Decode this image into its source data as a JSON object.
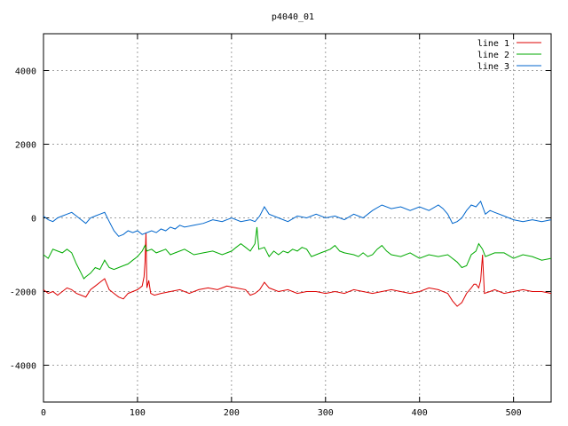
{
  "chart_data": {
    "type": "line",
    "title": "p4040_01",
    "xlabel": "",
    "ylabel": "",
    "xlim": [
      0,
      540
    ],
    "ylim": [
      -5000,
      5000
    ],
    "x_ticks": [
      0,
      100,
      200,
      300,
      400,
      500
    ],
    "y_ticks": [
      -4000,
      -2000,
      0,
      2000,
      4000
    ],
    "grid": true,
    "legend_position": "top-right",
    "series": [
      {
        "name": "line 1",
        "color": "#dd0000",
        "points": [
          [
            0,
            -1950
          ],
          [
            5,
            -2050
          ],
          [
            10,
            -2000
          ],
          [
            15,
            -2100
          ],
          [
            20,
            -2000
          ],
          [
            25,
            -1900
          ],
          [
            30,
            -1950
          ],
          [
            35,
            -2050
          ],
          [
            40,
            -2100
          ],
          [
            45,
            -2150
          ],
          [
            50,
            -1950
          ],
          [
            55,
            -1850
          ],
          [
            60,
            -1750
          ],
          [
            65,
            -1650
          ],
          [
            70,
            -1950
          ],
          [
            75,
            -2050
          ],
          [
            80,
            -2150
          ],
          [
            85,
            -2200
          ],
          [
            90,
            -2050
          ],
          [
            95,
            -2000
          ],
          [
            100,
            -1950
          ],
          [
            105,
            -1850
          ],
          [
            107,
            -1600
          ],
          [
            108,
            -1200
          ],
          [
            109,
            -400
          ],
          [
            110,
            -1900
          ],
          [
            112,
            -1700
          ],
          [
            114,
            -2050
          ],
          [
            118,
            -2100
          ],
          [
            125,
            -2050
          ],
          [
            135,
            -2000
          ],
          [
            145,
            -1950
          ],
          [
            155,
            -2050
          ],
          [
            165,
            -1950
          ],
          [
            175,
            -1900
          ],
          [
            185,
            -1950
          ],
          [
            195,
            -1850
          ],
          [
            205,
            -1900
          ],
          [
            215,
            -1950
          ],
          [
            220,
            -2100
          ],
          [
            225,
            -2050
          ],
          [
            230,
            -1950
          ],
          [
            235,
            -1750
          ],
          [
            240,
            -1900
          ],
          [
            250,
            -2000
          ],
          [
            260,
            -1950
          ],
          [
            270,
            -2050
          ],
          [
            280,
            -2000
          ],
          [
            290,
            -2000
          ],
          [
            300,
            -2050
          ],
          [
            310,
            -2000
          ],
          [
            320,
            -2050
          ],
          [
            330,
            -1950
          ],
          [
            340,
            -2000
          ],
          [
            350,
            -2050
          ],
          [
            360,
            -2000
          ],
          [
            370,
            -1950
          ],
          [
            380,
            -2000
          ],
          [
            390,
            -2050
          ],
          [
            400,
            -2000
          ],
          [
            410,
            -1900
          ],
          [
            420,
            -1950
          ],
          [
            430,
            -2050
          ],
          [
            435,
            -2250
          ],
          [
            440,
            -2400
          ],
          [
            445,
            -2300
          ],
          [
            450,
            -2050
          ],
          [
            455,
            -1900
          ],
          [
            458,
            -1800
          ],
          [
            460,
            -1800
          ],
          [
            463,
            -1900
          ],
          [
            465,
            -1700
          ],
          [
            467,
            -1000
          ],
          [
            469,
            -2050
          ],
          [
            475,
            -2000
          ],
          [
            480,
            -1950
          ],
          [
            490,
            -2050
          ],
          [
            500,
            -2000
          ],
          [
            510,
            -1950
          ],
          [
            520,
            -2000
          ],
          [
            530,
            -2000
          ],
          [
            540,
            -2050
          ]
        ]
      },
      {
        "name": "line 2",
        "color": "#00aa00",
        "points": [
          [
            0,
            -1000
          ],
          [
            5,
            -1100
          ],
          [
            10,
            -850
          ],
          [
            15,
            -900
          ],
          [
            20,
            -950
          ],
          [
            25,
            -850
          ],
          [
            30,
            -950
          ],
          [
            35,
            -1250
          ],
          [
            40,
            -1500
          ],
          [
            43,
            -1650
          ],
          [
            45,
            -1600
          ],
          [
            50,
            -1500
          ],
          [
            55,
            -1350
          ],
          [
            60,
            -1400
          ],
          [
            65,
            -1150
          ],
          [
            70,
            -1350
          ],
          [
            75,
            -1400
          ],
          [
            80,
            -1350
          ],
          [
            85,
            -1300
          ],
          [
            90,
            -1250
          ],
          [
            95,
            -1150
          ],
          [
            100,
            -1050
          ],
          [
            105,
            -900
          ],
          [
            108,
            -750
          ],
          [
            110,
            -900
          ],
          [
            115,
            -850
          ],
          [
            120,
            -950
          ],
          [
            125,
            -900
          ],
          [
            130,
            -850
          ],
          [
            135,
            -1000
          ],
          [
            140,
            -950
          ],
          [
            145,
            -900
          ],
          [
            150,
            -850
          ],
          [
            160,
            -1000
          ],
          [
            170,
            -950
          ],
          [
            180,
            -900
          ],
          [
            190,
            -1000
          ],
          [
            200,
            -900
          ],
          [
            205,
            -800
          ],
          [
            210,
            -700
          ],
          [
            215,
            -800
          ],
          [
            220,
            -900
          ],
          [
            225,
            -700
          ],
          [
            227,
            -250
          ],
          [
            229,
            -850
          ],
          [
            235,
            -800
          ],
          [
            240,
            -1050
          ],
          [
            245,
            -900
          ],
          [
            250,
            -1000
          ],
          [
            255,
            -900
          ],
          [
            260,
            -950
          ],
          [
            265,
            -850
          ],
          [
            270,
            -900
          ],
          [
            275,
            -800
          ],
          [
            280,
            -850
          ],
          [
            285,
            -1050
          ],
          [
            290,
            -1000
          ],
          [
            295,
            -950
          ],
          [
            300,
            -900
          ],
          [
            305,
            -850
          ],
          [
            310,
            -750
          ],
          [
            315,
            -900
          ],
          [
            320,
            -950
          ],
          [
            330,
            -1000
          ],
          [
            335,
            -1050
          ],
          [
            340,
            -950
          ],
          [
            345,
            -1050
          ],
          [
            350,
            -1000
          ],
          [
            355,
            -850
          ],
          [
            360,
            -750
          ],
          [
            365,
            -900
          ],
          [
            370,
            -1000
          ],
          [
            380,
            -1050
          ],
          [
            390,
            -950
          ],
          [
            400,
            -1100
          ],
          [
            410,
            -1000
          ],
          [
            420,
            -1050
          ],
          [
            430,
            -1000
          ],
          [
            440,
            -1200
          ],
          [
            445,
            -1350
          ],
          [
            450,
            -1300
          ],
          [
            455,
            -1000
          ],
          [
            460,
            -900
          ],
          [
            463,
            -700
          ],
          [
            467,
            -850
          ],
          [
            470,
            -1050
          ],
          [
            475,
            -1000
          ],
          [
            480,
            -950
          ],
          [
            490,
            -950
          ],
          [
            500,
            -1100
          ],
          [
            510,
            -1000
          ],
          [
            520,
            -1050
          ],
          [
            530,
            -1150
          ],
          [
            540,
            -1100
          ]
        ]
      },
      {
        "name": "line 3",
        "color": "#0066cc",
        "points": [
          [
            0,
            50
          ],
          [
            5,
            -50
          ],
          [
            10,
            -100
          ],
          [
            15,
            0
          ],
          [
            20,
            50
          ],
          [
            25,
            100
          ],
          [
            30,
            150
          ],
          [
            35,
            50
          ],
          [
            40,
            -50
          ],
          [
            45,
            -150
          ],
          [
            50,
            0
          ],
          [
            55,
            50
          ],
          [
            60,
            100
          ],
          [
            65,
            150
          ],
          [
            70,
            -100
          ],
          [
            75,
            -350
          ],
          [
            80,
            -500
          ],
          [
            85,
            -450
          ],
          [
            90,
            -350
          ],
          [
            95,
            -400
          ],
          [
            100,
            -350
          ],
          [
            105,
            -450
          ],
          [
            110,
            -400
          ],
          [
            115,
            -350
          ],
          [
            120,
            -400
          ],
          [
            125,
            -300
          ],
          [
            130,
            -350
          ],
          [
            135,
            -250
          ],
          [
            140,
            -300
          ],
          [
            145,
            -200
          ],
          [
            150,
            -250
          ],
          [
            160,
            -200
          ],
          [
            170,
            -150
          ],
          [
            180,
            -50
          ],
          [
            190,
            -100
          ],
          [
            200,
            0
          ],
          [
            210,
            -100
          ],
          [
            220,
            -50
          ],
          [
            225,
            -100
          ],
          [
            230,
            50
          ],
          [
            235,
            300
          ],
          [
            240,
            100
          ],
          [
            250,
            0
          ],
          [
            260,
            -100
          ],
          [
            270,
            50
          ],
          [
            280,
            0
          ],
          [
            290,
            100
          ],
          [
            300,
            0
          ],
          [
            310,
            50
          ],
          [
            320,
            -50
          ],
          [
            330,
            100
          ],
          [
            340,
            0
          ],
          [
            350,
            200
          ],
          [
            360,
            350
          ],
          [
            370,
            250
          ],
          [
            380,
            300
          ],
          [
            390,
            200
          ],
          [
            400,
            300
          ],
          [
            410,
            200
          ],
          [
            420,
            350
          ],
          [
            425,
            250
          ],
          [
            430,
            100
          ],
          [
            435,
            -150
          ],
          [
            440,
            -100
          ],
          [
            445,
            0
          ],
          [
            450,
            200
          ],
          [
            455,
            350
          ],
          [
            460,
            300
          ],
          [
            465,
            450
          ],
          [
            470,
            100
          ],
          [
            475,
            200
          ],
          [
            480,
            150
          ],
          [
            490,
            50
          ],
          [
            500,
            -50
          ],
          [
            510,
            -100
          ],
          [
            520,
            -50
          ],
          [
            530,
            -100
          ],
          [
            540,
            -50
          ]
        ]
      }
    ]
  }
}
